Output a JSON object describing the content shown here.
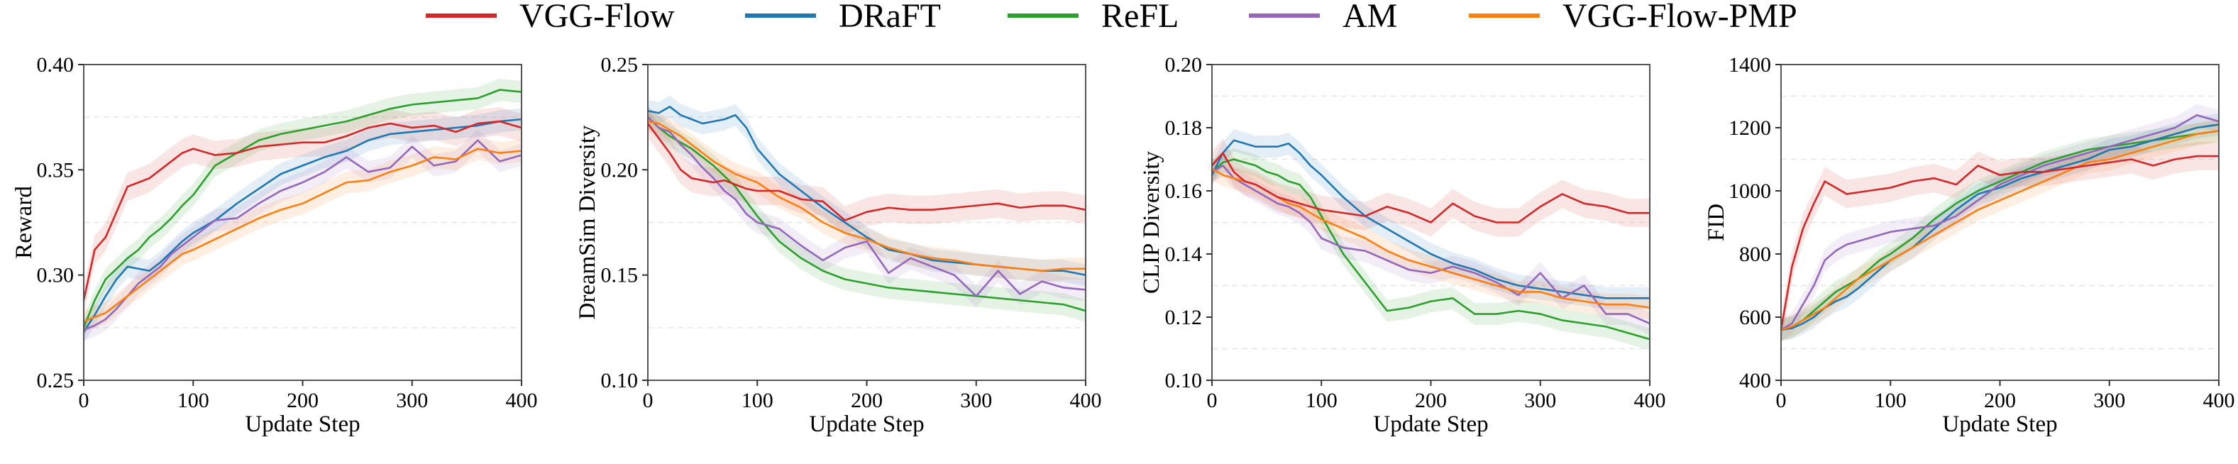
{
  "chart_data": [
    {
      "type": "line",
      "xlabel": "Update Step",
      "ylabel": "Reward",
      "xlim": [
        0,
        400
      ],
      "ylim": [
        0.25,
        0.4
      ],
      "xticks": [
        0,
        100,
        200,
        300,
        400
      ],
      "yticks": [
        0.25,
        0.3,
        0.35,
        0.4
      ],
      "ytick_labels": [
        "0.25",
        "0.30",
        "0.35",
        "0.40"
      ],
      "grid": true,
      "x": [
        0,
        10,
        20,
        30,
        40,
        50,
        60,
        70,
        80,
        90,
        100,
        120,
        140,
        160,
        180,
        200,
        220,
        240,
        260,
        280,
        300,
        320,
        340,
        360,
        380,
        400
      ],
      "series": [
        {
          "name": "VGG-Flow",
          "values": [
            0.288,
            0.312,
            0.318,
            0.33,
            0.342,
            0.344,
            0.346,
            0.35,
            0.354,
            0.358,
            0.36,
            0.357,
            0.358,
            0.361,
            0.362,
            0.363,
            0.363,
            0.366,
            0.37,
            0.372,
            0.37,
            0.371,
            0.368,
            0.372,
            0.373,
            0.37
          ]
        },
        {
          "name": "DRaFT",
          "values": [
            0.273,
            0.281,
            0.29,
            0.298,
            0.304,
            0.303,
            0.302,
            0.306,
            0.311,
            0.316,
            0.32,
            0.326,
            0.334,
            0.341,
            0.348,
            0.352,
            0.356,
            0.359,
            0.364,
            0.367,
            0.368,
            0.369,
            0.37,
            0.371,
            0.373,
            0.374
          ]
        },
        {
          "name": "ReFL",
          "values": [
            0.275,
            0.288,
            0.298,
            0.303,
            0.308,
            0.312,
            0.318,
            0.322,
            0.327,
            0.333,
            0.338,
            0.352,
            0.358,
            0.364,
            0.367,
            0.369,
            0.371,
            0.373,
            0.376,
            0.379,
            0.381,
            0.382,
            0.383,
            0.384,
            0.388,
            0.387
          ]
        },
        {
          "name": "AM",
          "values": [
            0.274,
            0.276,
            0.279,
            0.284,
            0.29,
            0.296,
            0.3,
            0.304,
            0.31,
            0.314,
            0.318,
            0.326,
            0.327,
            0.334,
            0.34,
            0.344,
            0.349,
            0.356,
            0.349,
            0.351,
            0.361,
            0.352,
            0.354,
            0.364,
            0.354,
            0.357
          ]
        },
        {
          "name": "VGG-Flow-PMP",
          "values": [
            0.278,
            0.28,
            0.282,
            0.286,
            0.29,
            0.294,
            0.298,
            0.302,
            0.306,
            0.31,
            0.312,
            0.317,
            0.322,
            0.327,
            0.331,
            0.334,
            0.339,
            0.344,
            0.345,
            0.349,
            0.352,
            0.356,
            0.355,
            0.36,
            0.358,
            0.359
          ]
        }
      ]
    },
    {
      "type": "line",
      "xlabel": "Update Step",
      "ylabel": "DreamSim Diversity",
      "xlim": [
        0,
        400
      ],
      "ylim": [
        0.1,
        0.25
      ],
      "xticks": [
        0,
        100,
        200,
        300,
        400
      ],
      "yticks": [
        0.1,
        0.15,
        0.2,
        0.25
      ],
      "ytick_labels": [
        "0.10",
        "0.15",
        "0.20",
        "0.25"
      ],
      "grid": true,
      "x": [
        0,
        10,
        20,
        30,
        40,
        50,
        60,
        70,
        80,
        90,
        100,
        120,
        140,
        160,
        180,
        200,
        220,
        240,
        260,
        280,
        300,
        320,
        340,
        360,
        380,
        400
      ],
      "series": [
        {
          "name": "VGG-Flow",
          "values": [
            0.222,
            0.215,
            0.208,
            0.2,
            0.196,
            0.195,
            0.194,
            0.195,
            0.193,
            0.191,
            0.19,
            0.19,
            0.186,
            0.185,
            0.176,
            0.18,
            0.182,
            0.181,
            0.181,
            0.182,
            0.183,
            0.184,
            0.182,
            0.183,
            0.183,
            0.181
          ]
        },
        {
          "name": "DRaFT",
          "values": [
            0.228,
            0.227,
            0.23,
            0.226,
            0.224,
            0.222,
            0.223,
            0.224,
            0.226,
            0.22,
            0.21,
            0.198,
            0.19,
            0.182,
            0.175,
            0.168,
            0.162,
            0.16,
            0.157,
            0.156,
            0.155,
            0.154,
            0.153,
            0.152,
            0.152,
            0.15
          ]
        },
        {
          "name": "ReFL",
          "values": [
            0.225,
            0.22,
            0.216,
            0.213,
            0.21,
            0.206,
            0.202,
            0.197,
            0.192,
            0.185,
            0.178,
            0.166,
            0.158,
            0.152,
            0.148,
            0.146,
            0.144,
            0.143,
            0.142,
            0.141,
            0.14,
            0.139,
            0.138,
            0.137,
            0.136,
            0.133
          ]
        },
        {
          "name": "AM",
          "values": [
            0.225,
            0.22,
            0.218,
            0.212,
            0.207,
            0.201,
            0.196,
            0.19,
            0.186,
            0.179,
            0.175,
            0.172,
            0.164,
            0.157,
            0.163,
            0.166,
            0.151,
            0.158,
            0.154,
            0.15,
            0.14,
            0.152,
            0.141,
            0.147,
            0.144,
            0.143
          ]
        },
        {
          "name": "VGG-Flow-PMP",
          "values": [
            0.223,
            0.222,
            0.219,
            0.216,
            0.212,
            0.208,
            0.204,
            0.201,
            0.198,
            0.196,
            0.194,
            0.187,
            0.182,
            0.175,
            0.17,
            0.167,
            0.163,
            0.16,
            0.158,
            0.157,
            0.155,
            0.154,
            0.153,
            0.152,
            0.153,
            0.153
          ]
        }
      ]
    },
    {
      "type": "line",
      "xlabel": "Update Step",
      "ylabel": "CLIP Diversity",
      "xlim": [
        0,
        400
      ],
      "ylim": [
        0.1,
        0.2
      ],
      "xticks": [
        0,
        100,
        200,
        300,
        400
      ],
      "yticks": [
        0.1,
        0.12,
        0.14,
        0.16,
        0.18,
        0.2
      ],
      "ytick_labels": [
        "0.10",
        "0.12",
        "0.14",
        "0.16",
        "0.18",
        "0.20"
      ],
      "grid": true,
      "x": [
        0,
        10,
        20,
        30,
        40,
        50,
        60,
        70,
        80,
        90,
        100,
        120,
        140,
        160,
        180,
        200,
        220,
        240,
        260,
        280,
        300,
        320,
        340,
        360,
        380,
        400
      ],
      "series": [
        {
          "name": "VGG-Flow",
          "values": [
            0.168,
            0.172,
            0.166,
            0.163,
            0.162,
            0.16,
            0.158,
            0.157,
            0.156,
            0.155,
            0.154,
            0.153,
            0.152,
            0.155,
            0.153,
            0.15,
            0.156,
            0.152,
            0.15,
            0.15,
            0.155,
            0.159,
            0.156,
            0.155,
            0.153,
            0.153
          ]
        },
        {
          "name": "DRaFT",
          "values": [
            0.165,
            0.172,
            0.176,
            0.175,
            0.174,
            0.174,
            0.174,
            0.175,
            0.172,
            0.168,
            0.165,
            0.158,
            0.152,
            0.148,
            0.144,
            0.14,
            0.137,
            0.135,
            0.132,
            0.13,
            0.129,
            0.128,
            0.127,
            0.126,
            0.126,
            0.126
          ]
        },
        {
          "name": "ReFL",
          "values": [
            0.166,
            0.169,
            0.17,
            0.169,
            0.168,
            0.166,
            0.165,
            0.163,
            0.162,
            0.158,
            0.152,
            0.14,
            0.131,
            0.122,
            0.123,
            0.125,
            0.126,
            0.121,
            0.121,
            0.122,
            0.121,
            0.119,
            0.118,
            0.117,
            0.115,
            0.113
          ]
        },
        {
          "name": "AM",
          "values": [
            0.166,
            0.168,
            0.164,
            0.162,
            0.16,
            0.158,
            0.156,
            0.155,
            0.153,
            0.15,
            0.145,
            0.142,
            0.141,
            0.138,
            0.135,
            0.134,
            0.136,
            0.134,
            0.131,
            0.127,
            0.134,
            0.126,
            0.13,
            0.121,
            0.121,
            0.118
          ]
        },
        {
          "name": "VGG-Flow-PMP",
          "values": [
            0.167,
            0.165,
            0.164,
            0.163,
            0.162,
            0.16,
            0.158,
            0.156,
            0.155,
            0.153,
            0.151,
            0.148,
            0.145,
            0.141,
            0.138,
            0.136,
            0.134,
            0.132,
            0.13,
            0.128,
            0.128,
            0.126,
            0.125,
            0.124,
            0.124,
            0.123
          ]
        }
      ]
    },
    {
      "type": "line",
      "xlabel": "Update Step",
      "ylabel": "FID",
      "xlim": [
        0,
        400
      ],
      "ylim": [
        400,
        1400
      ],
      "xticks": [
        0,
        100,
        200,
        300,
        400
      ],
      "yticks": [
        400,
        600,
        800,
        1000,
        1200,
        1400
      ],
      "ytick_labels": [
        "400",
        "600",
        "800",
        "1000",
        "1200",
        "1400"
      ],
      "grid": true,
      "x": [
        0,
        10,
        20,
        30,
        40,
        50,
        60,
        70,
        80,
        90,
        100,
        120,
        140,
        160,
        180,
        200,
        220,
        240,
        260,
        280,
        300,
        320,
        340,
        360,
        380,
        400
      ],
      "series": [
        {
          "name": "VGG-Flow",
          "values": [
            560,
            760,
            880,
            960,
            1030,
            1010,
            990,
            995,
            1000,
            1005,
            1010,
            1030,
            1040,
            1020,
            1080,
            1050,
            1060,
            1060,
            1070,
            1080,
            1090,
            1100,
            1080,
            1100,
            1110,
            1110
          ]
        },
        {
          "name": "DRaFT",
          "values": [
            560,
            565,
            580,
            600,
            630,
            650,
            665,
            690,
            720,
            750,
            780,
            820,
            880,
            940,
            990,
            1010,
            1040,
            1060,
            1080,
            1100,
            1130,
            1140,
            1160,
            1180,
            1200,
            1210
          ]
        },
        {
          "name": "ReFL",
          "values": [
            560,
            570,
            590,
            620,
            650,
            680,
            700,
            720,
            750,
            780,
            800,
            850,
            910,
            960,
            1000,
            1030,
            1060,
            1090,
            1110,
            1130,
            1140,
            1150,
            1160,
            1170,
            1180,
            1190
          ]
        },
        {
          "name": "AM",
          "values": [
            560,
            580,
            640,
            700,
            780,
            810,
            830,
            840,
            850,
            860,
            870,
            880,
            890,
            920,
            970,
            1020,
            1050,
            1080,
            1100,
            1120,
            1140,
            1160,
            1180,
            1200,
            1240,
            1220
          ]
        },
        {
          "name": "VGG-Flow-PMP",
          "values": [
            560,
            570,
            590,
            610,
            630,
            660,
            690,
            720,
            740,
            760,
            780,
            820,
            860,
            900,
            940,
            970,
            1000,
            1030,
            1060,
            1090,
            1100,
            1120,
            1140,
            1160,
            1180,
            1190
          ]
        }
      ]
    }
  ],
  "legend": {
    "placement": "top-center",
    "entries": [
      {
        "name": "VGG-Flow",
        "color": "#d62728"
      },
      {
        "name": "DRaFT",
        "color": "#1f77b4"
      },
      {
        "name": "ReFL",
        "color": "#2ca02c"
      },
      {
        "name": "AM",
        "color": "#9467bd"
      },
      {
        "name": "VGG-Flow-PMP",
        "color": "#ff7f0e"
      }
    ]
  }
}
